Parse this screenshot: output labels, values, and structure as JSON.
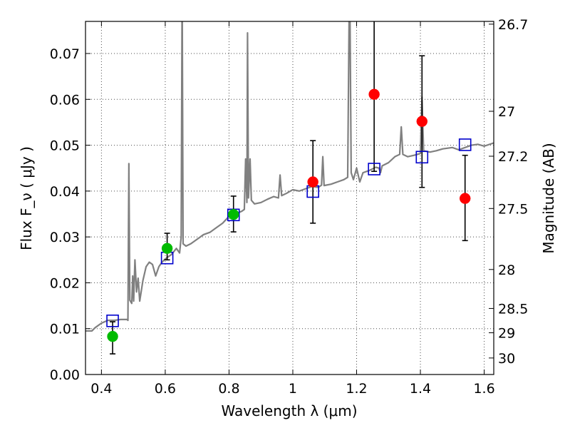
{
  "chart_data": {
    "type": "scatter",
    "xlabel": "Wavelength  λ (μm)",
    "ylabel": "Flux  F_ν  ( μJy )",
    "ylabel_right": "Magnitude (AB)",
    "xlim": [
      0.35,
      1.63
    ],
    "ylim": [
      0.0,
      0.077
    ],
    "x_ticks": [
      0.4,
      0.6,
      0.8,
      1.0,
      1.2,
      1.4,
      1.6
    ],
    "x_tick_labels": [
      "0.4",
      "0.6",
      "0.8",
      "1",
      "1.2",
      "1.4",
      "1.6"
    ],
    "y_ticks": [
      0.0,
      0.01,
      0.02,
      0.03,
      0.04,
      0.05,
      0.06,
      0.07
    ],
    "y_tick_labels": [
      "0.00",
      "0.01",
      "0.02",
      "0.03",
      "0.04",
      "0.05",
      "0.06",
      "0.07"
    ],
    "right_ticks": [
      {
        "label": "26.7",
        "flux": 0.0764
      },
      {
        "label": "27",
        "flux": 0.0574
      },
      {
        "label": "27.2",
        "flux": 0.0476
      },
      {
        "label": "27.5",
        "flux": 0.0362
      },
      {
        "label": "28",
        "flux": 0.0229
      },
      {
        "label": "28.5",
        "flux": 0.0144
      },
      {
        "label": "29",
        "flux": 0.0091
      },
      {
        "label": "30",
        "flux": 0.0036
      }
    ],
    "grid": true,
    "colors": {
      "spectrum": "#808080",
      "green_points": "#00bb00",
      "red_points": "#ff0000",
      "model_squares": "#0000cc",
      "error_bars": "#000000"
    },
    "series": [
      {
        "kind": "model_spectrum",
        "points": [
          [
            0.35,
            0.0095
          ],
          [
            0.37,
            0.0095
          ],
          [
            0.38,
            0.0102
          ],
          [
            0.4,
            0.0112
          ],
          [
            0.42,
            0.0118
          ],
          [
            0.44,
            0.0118
          ],
          [
            0.46,
            0.012
          ],
          [
            0.48,
            0.012
          ],
          [
            0.483,
            0.0118
          ],
          [
            0.486,
            0.046
          ],
          [
            0.489,
            0.0162
          ],
          [
            0.495,
            0.0155
          ],
          [
            0.498,
            0.0215
          ],
          [
            0.501,
            0.016
          ],
          [
            0.505,
            0.025
          ],
          [
            0.51,
            0.018
          ],
          [
            0.515,
            0.021
          ],
          [
            0.52,
            0.016
          ],
          [
            0.53,
            0.0205
          ],
          [
            0.54,
            0.0235
          ],
          [
            0.55,
            0.0245
          ],
          [
            0.56,
            0.024
          ],
          [
            0.57,
            0.0215
          ],
          [
            0.58,
            0.0235
          ],
          [
            0.59,
            0.0245
          ],
          [
            0.6,
            0.0252
          ],
          [
            0.62,
            0.0262
          ],
          [
            0.635,
            0.0275
          ],
          [
            0.645,
            0.0265
          ],
          [
            0.65,
            0.03
          ],
          [
            0.653,
            0.085
          ],
          [
            0.656,
            0.0285
          ],
          [
            0.665,
            0.028
          ],
          [
            0.68,
            0.0285
          ],
          [
            0.7,
            0.0295
          ],
          [
            0.72,
            0.0305
          ],
          [
            0.74,
            0.031
          ],
          [
            0.76,
            0.032
          ],
          [
            0.78,
            0.033
          ],
          [
            0.8,
            0.0345
          ],
          [
            0.82,
            0.035
          ],
          [
            0.84,
            0.0356
          ],
          [
            0.848,
            0.036
          ],
          [
            0.852,
            0.047
          ],
          [
            0.856,
            0.0375
          ],
          [
            0.858,
            0.0745
          ],
          [
            0.861,
            0.0385
          ],
          [
            0.866,
            0.047
          ],
          [
            0.87,
            0.038
          ],
          [
            0.88,
            0.0372
          ],
          [
            0.9,
            0.0375
          ],
          [
            0.92,
            0.0382
          ],
          [
            0.94,
            0.0388
          ],
          [
            0.955,
            0.0385
          ],
          [
            0.96,
            0.0435
          ],
          [
            0.965,
            0.039
          ],
          [
            0.98,
            0.0395
          ],
          [
            1.0,
            0.0403
          ],
          [
            1.02,
            0.04
          ],
          [
            1.04,
            0.0405
          ],
          [
            1.06,
            0.041
          ],
          [
            1.08,
            0.0408
          ],
          [
            1.09,
            0.0413
          ],
          [
            1.094,
            0.0475
          ],
          [
            1.098,
            0.0412
          ],
          [
            1.12,
            0.0415
          ],
          [
            1.14,
            0.042
          ],
          [
            1.16,
            0.0425
          ],
          [
            1.172,
            0.043
          ],
          [
            1.178,
            0.09
          ],
          [
            1.183,
            0.044
          ],
          [
            1.19,
            0.0425
          ],
          [
            1.2,
            0.045
          ],
          [
            1.21,
            0.042
          ],
          [
            1.22,
            0.044
          ],
          [
            1.24,
            0.0445
          ],
          [
            1.26,
            0.0452
          ],
          [
            1.27,
            0.045
          ],
          [
            1.275,
            0.044
          ],
          [
            1.28,
            0.0455
          ],
          [
            1.3,
            0.0462
          ],
          [
            1.32,
            0.0475
          ],
          [
            1.335,
            0.048
          ],
          [
            1.34,
            0.054
          ],
          [
            1.345,
            0.048
          ],
          [
            1.36,
            0.0475
          ],
          [
            1.38,
            0.0478
          ],
          [
            1.4,
            0.0482
          ],
          [
            1.405,
            0.0605
          ],
          [
            1.41,
            0.0488
          ],
          [
            1.43,
            0.0485
          ],
          [
            1.45,
            0.0488
          ],
          [
            1.47,
            0.0492
          ],
          [
            1.5,
            0.0495
          ],
          [
            1.52,
            0.049
          ],
          [
            1.54,
            0.0495
          ],
          [
            1.56,
            0.05
          ],
          [
            1.58,
            0.0502
          ],
          [
            1.6,
            0.0498
          ],
          [
            1.63,
            0.0505
          ]
        ]
      },
      {
        "kind": "model_photometry",
        "points": [
          [
            0.435,
            0.0117
          ],
          [
            0.606,
            0.0254
          ],
          [
            0.814,
            0.0348
          ],
          [
            1.063,
            0.0399
          ],
          [
            1.255,
            0.0448
          ],
          [
            1.405,
            0.0474
          ],
          [
            1.54,
            0.0501
          ]
        ]
      },
      {
        "kind": "observed_green",
        "points": [
          {
            "x": 0.435,
            "y": 0.0083,
            "yerr_low": 0.0045,
            "yerr_high": 0.0115
          },
          {
            "x": 0.606,
            "y": 0.0275,
            "yerr_low": 0.025,
            "yerr_high": 0.0308
          },
          {
            "x": 0.814,
            "y": 0.0349,
            "yerr_low": 0.0311,
            "yerr_high": 0.0389
          }
        ]
      },
      {
        "kind": "observed_red",
        "points": [
          {
            "x": 1.063,
            "y": 0.042,
            "yerr_low": 0.033,
            "yerr_high": 0.051
          },
          {
            "x": 1.255,
            "y": 0.0611,
            "yerr_low": 0.0443,
            "yerr_high": 0.08
          },
          {
            "x": 1.405,
            "y": 0.0552,
            "yerr_low": 0.0408,
            "yerr_high": 0.0695
          },
          {
            "x": 1.54,
            "y": 0.0384,
            "yerr_low": 0.0292,
            "yerr_high": 0.0478
          }
        ]
      }
    ]
  }
}
